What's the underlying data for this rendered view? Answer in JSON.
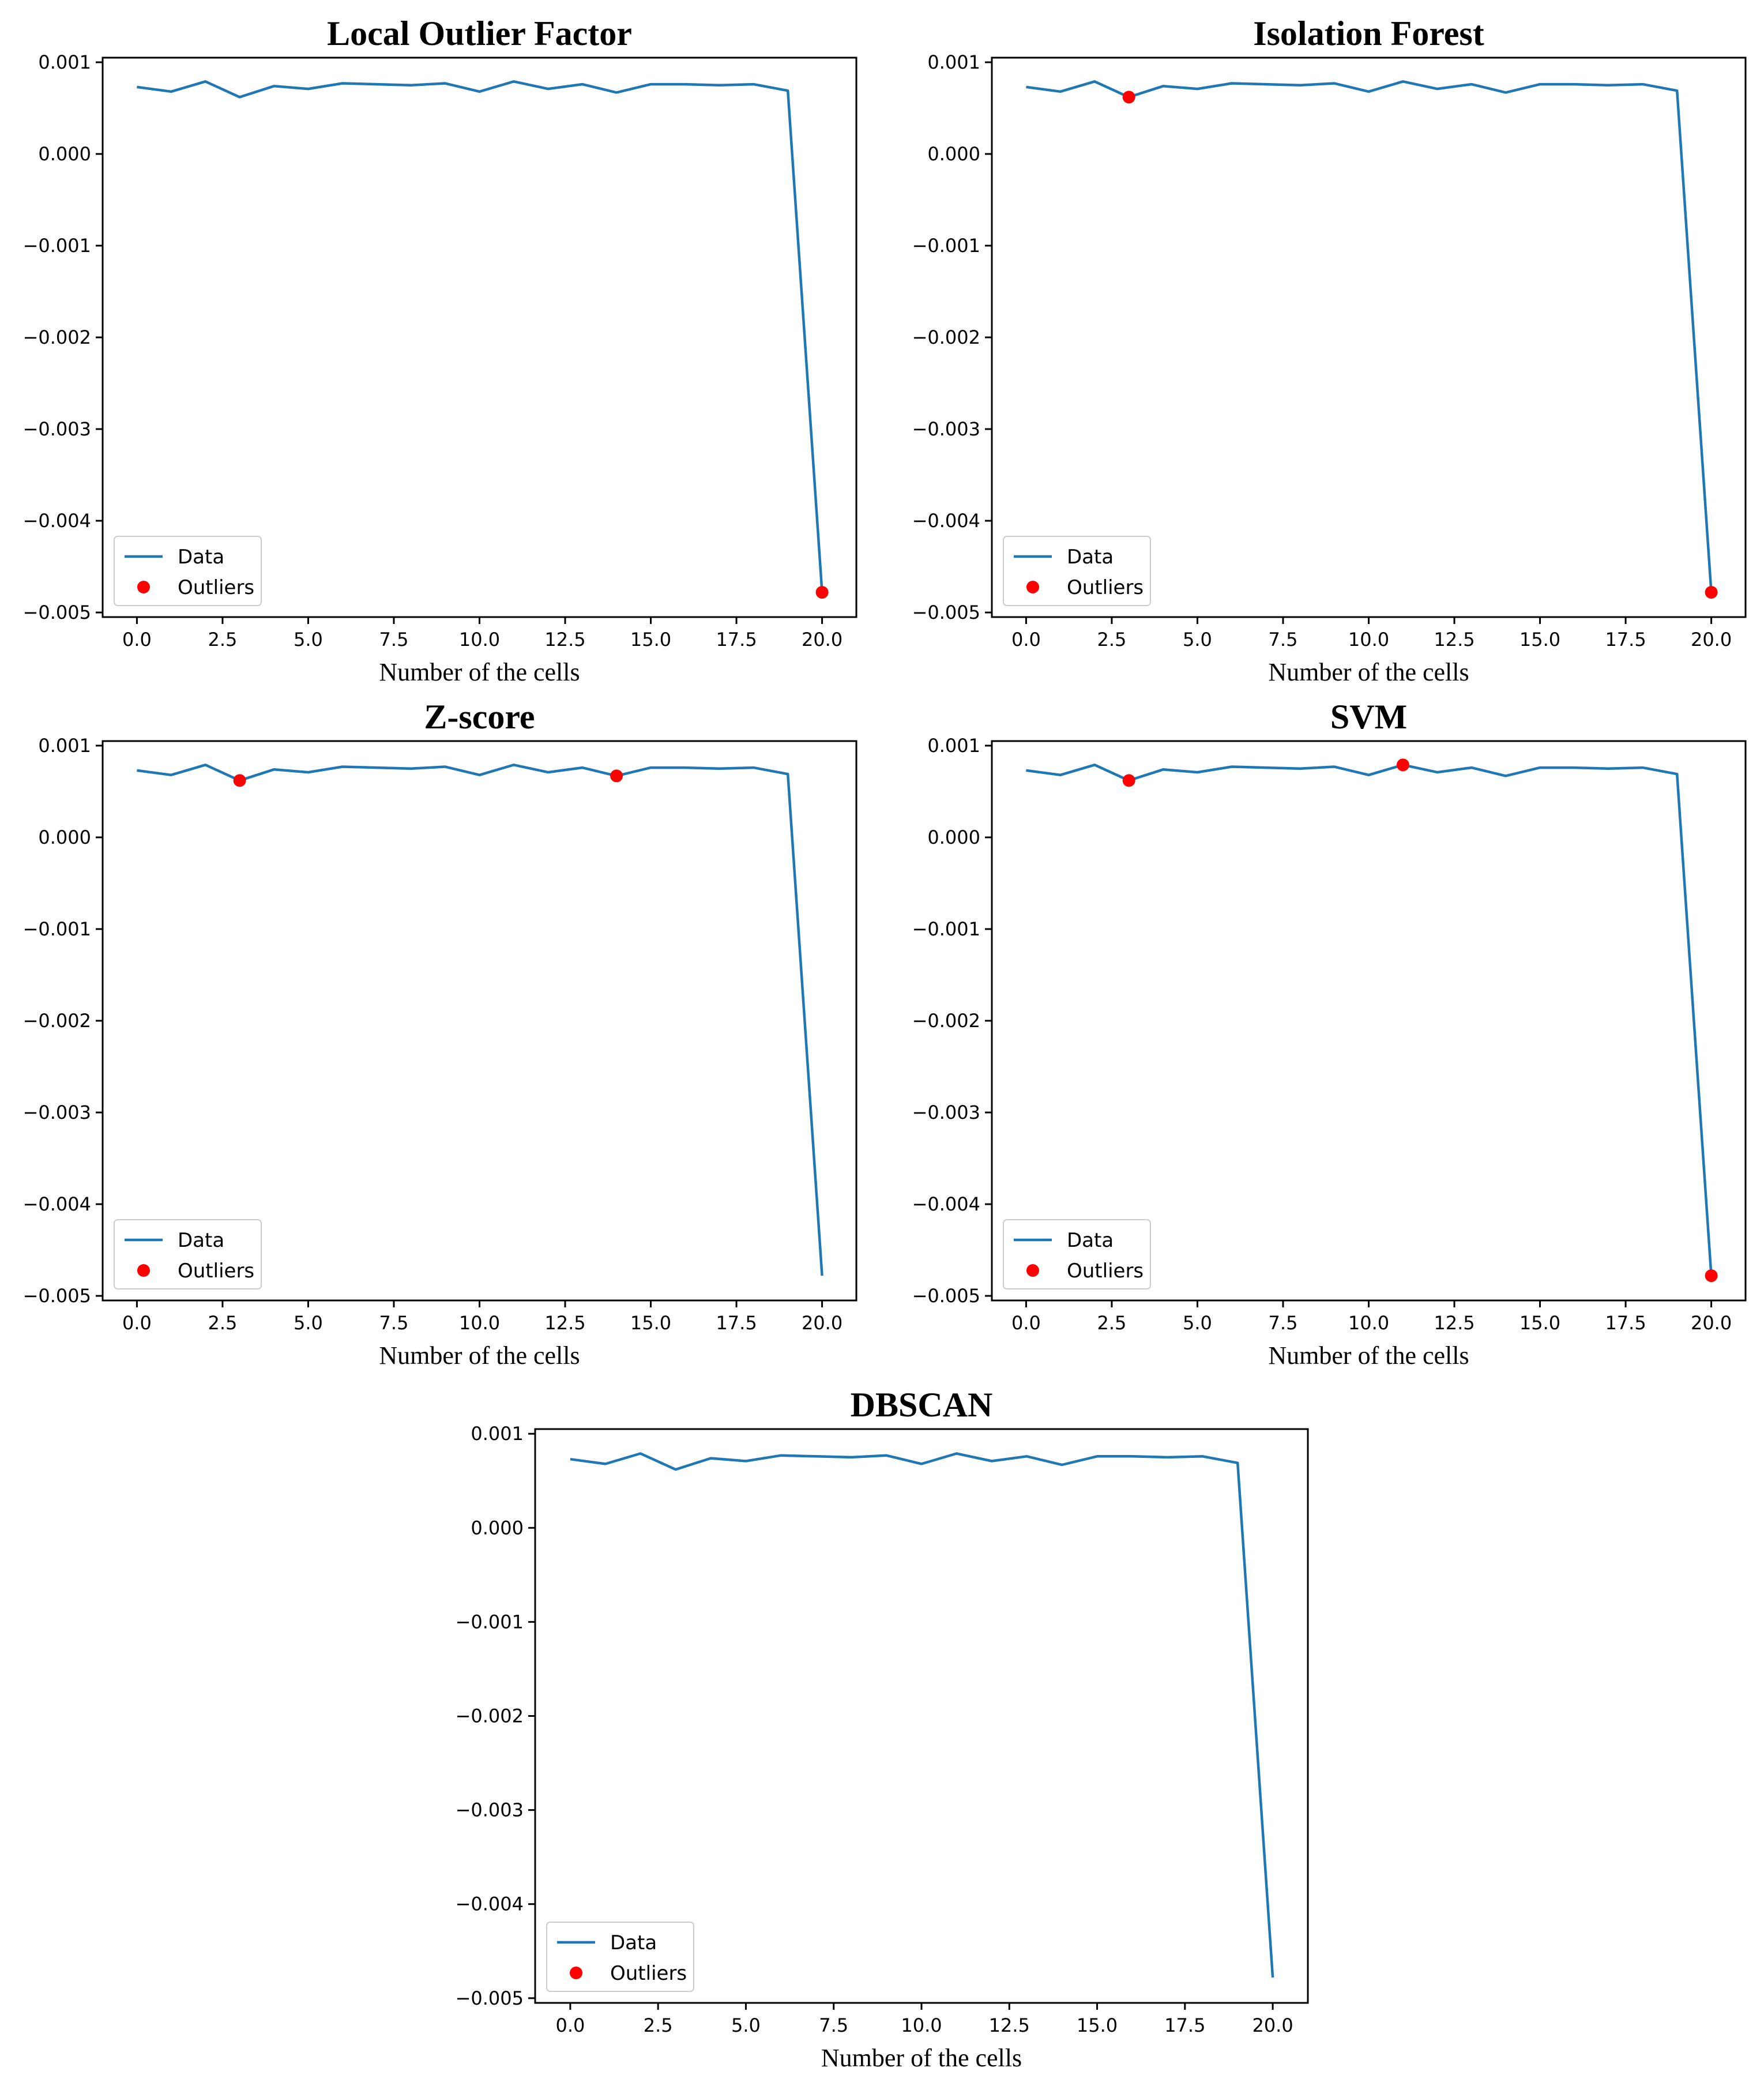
{
  "colors": {
    "data_line": "#1f77b4",
    "outlier": "#ff0000"
  },
  "legend_labels": {
    "data": "Data",
    "outliers": "Outliers"
  },
  "chart_data": [
    {
      "type": "line",
      "title": "Local Outlier Factor",
      "xlabel": "Number of the cells",
      "ylabel": "",
      "xlim": [
        -1,
        21
      ],
      "ylim": [
        -0.00505,
        0.00105
      ],
      "xticks": [
        0.0,
        2.5,
        5.0,
        7.5,
        10.0,
        12.5,
        15.0,
        17.5,
        20.0
      ],
      "xtick_labels": [
        "0.0",
        "2.5",
        "5.0",
        "7.5",
        "10.0",
        "12.5",
        "15.0",
        "17.5",
        "20.0"
      ],
      "yticks": [
        0.001,
        0.0,
        -0.001,
        -0.002,
        -0.003,
        -0.004,
        -0.005
      ],
      "ytick_labels": [
        "0.001",
        "0.000",
        "−0.001",
        "−0.002",
        "−0.003",
        "−0.004",
        "−0.005"
      ],
      "legend_position": "lower-left",
      "grid": false,
      "series": [
        {
          "name": "Data",
          "x": [
            0,
            1,
            2,
            3,
            4,
            5,
            6,
            7,
            8,
            9,
            10,
            11,
            12,
            13,
            14,
            15,
            16,
            17,
            18,
            19,
            20
          ],
          "y": [
            0.00073,
            0.00068,
            0.00079,
            0.00062,
            0.00074,
            0.00071,
            0.00077,
            0.00076,
            0.00075,
            0.00077,
            0.00068,
            0.00079,
            0.00071,
            0.00076,
            0.00067,
            0.00076,
            0.00076,
            0.00075,
            0.00076,
            0.00069,
            -0.00478
          ]
        }
      ],
      "outliers": {
        "name": "Outliers",
        "x": [
          20
        ],
        "y": [
          -0.00478
        ]
      }
    },
    {
      "type": "line",
      "title": "Isolation Forest",
      "xlabel": "Number of the cells",
      "ylabel": "",
      "xlim": [
        -1,
        21
      ],
      "ylim": [
        -0.00505,
        0.00105
      ],
      "xticks": [
        0.0,
        2.5,
        5.0,
        7.5,
        10.0,
        12.5,
        15.0,
        17.5,
        20.0
      ],
      "xtick_labels": [
        "0.0",
        "2.5",
        "5.0",
        "7.5",
        "10.0",
        "12.5",
        "15.0",
        "17.5",
        "20.0"
      ],
      "yticks": [
        0.001,
        0.0,
        -0.001,
        -0.002,
        -0.003,
        -0.004,
        -0.005
      ],
      "ytick_labels": [
        "0.001",
        "0.000",
        "−0.001",
        "−0.002",
        "−0.003",
        "−0.004",
        "−0.005"
      ],
      "legend_position": "lower-left",
      "grid": false,
      "series": [
        {
          "name": "Data",
          "x": [
            0,
            1,
            2,
            3,
            4,
            5,
            6,
            7,
            8,
            9,
            10,
            11,
            12,
            13,
            14,
            15,
            16,
            17,
            18,
            19,
            20
          ],
          "y": [
            0.00073,
            0.00068,
            0.00079,
            0.00062,
            0.00074,
            0.00071,
            0.00077,
            0.00076,
            0.00075,
            0.00077,
            0.00068,
            0.00079,
            0.00071,
            0.00076,
            0.00067,
            0.00076,
            0.00076,
            0.00075,
            0.00076,
            0.00069,
            -0.00478
          ]
        }
      ],
      "outliers": {
        "name": "Outliers",
        "x": [
          3,
          20
        ],
        "y": [
          0.00062,
          -0.00478
        ]
      }
    },
    {
      "type": "line",
      "title": "Z-score",
      "xlabel": "Number of the cells",
      "ylabel": "",
      "xlim": [
        -1,
        21
      ],
      "ylim": [
        -0.00505,
        0.00105
      ],
      "xticks": [
        0.0,
        2.5,
        5.0,
        7.5,
        10.0,
        12.5,
        15.0,
        17.5,
        20.0
      ],
      "xtick_labels": [
        "0.0",
        "2.5",
        "5.0",
        "7.5",
        "10.0",
        "12.5",
        "15.0",
        "17.5",
        "20.0"
      ],
      "yticks": [
        0.001,
        0.0,
        -0.001,
        -0.002,
        -0.003,
        -0.004,
        -0.005
      ],
      "ytick_labels": [
        "0.001",
        "0.000",
        "−0.001",
        "−0.002",
        "−0.003",
        "−0.004",
        "−0.005"
      ],
      "legend_position": "lower-left",
      "grid": false,
      "series": [
        {
          "name": "Data",
          "x": [
            0,
            1,
            2,
            3,
            4,
            5,
            6,
            7,
            8,
            9,
            10,
            11,
            12,
            13,
            14,
            15,
            16,
            17,
            18,
            19,
            20
          ],
          "y": [
            0.00073,
            0.00068,
            0.00079,
            0.00062,
            0.00074,
            0.00071,
            0.00077,
            0.00076,
            0.00075,
            0.00077,
            0.00068,
            0.00079,
            0.00071,
            0.00076,
            0.00067,
            0.00076,
            0.00076,
            0.00075,
            0.00076,
            0.00069,
            -0.00478
          ]
        }
      ],
      "outliers": {
        "name": "Outliers",
        "x": [
          3,
          14
        ],
        "y": [
          0.00062,
          0.00067
        ]
      }
    },
    {
      "type": "line",
      "title": "SVM",
      "xlabel": "Number of the cells",
      "ylabel": "",
      "xlim": [
        -1,
        21
      ],
      "ylim": [
        -0.00505,
        0.00105
      ],
      "xticks": [
        0.0,
        2.5,
        5.0,
        7.5,
        10.0,
        12.5,
        15.0,
        17.5,
        20.0
      ],
      "xtick_labels": [
        "0.0",
        "2.5",
        "5.0",
        "7.5",
        "10.0",
        "12.5",
        "15.0",
        "17.5",
        "20.0"
      ],
      "yticks": [
        0.001,
        0.0,
        -0.001,
        -0.002,
        -0.003,
        -0.004,
        -0.005
      ],
      "ytick_labels": [
        "0.001",
        "0.000",
        "−0.001",
        "−0.002",
        "−0.003",
        "−0.004",
        "−0.005"
      ],
      "legend_position": "lower-left",
      "grid": false,
      "series": [
        {
          "name": "Data",
          "x": [
            0,
            1,
            2,
            3,
            4,
            5,
            6,
            7,
            8,
            9,
            10,
            11,
            12,
            13,
            14,
            15,
            16,
            17,
            18,
            19,
            20
          ],
          "y": [
            0.00073,
            0.00068,
            0.00079,
            0.00062,
            0.00074,
            0.00071,
            0.00077,
            0.00076,
            0.00075,
            0.00077,
            0.00068,
            0.00079,
            0.00071,
            0.00076,
            0.00067,
            0.00076,
            0.00076,
            0.00075,
            0.00076,
            0.00069,
            -0.00478
          ]
        }
      ],
      "outliers": {
        "name": "Outliers",
        "x": [
          3,
          11,
          20
        ],
        "y": [
          0.00062,
          0.00079,
          -0.00478
        ]
      }
    },
    {
      "type": "line",
      "title": "DBSCAN",
      "xlabel": "Number of the cells",
      "ylabel": "",
      "xlim": [
        -1,
        21
      ],
      "ylim": [
        -0.00505,
        0.00105
      ],
      "xticks": [
        0.0,
        2.5,
        5.0,
        7.5,
        10.0,
        12.5,
        15.0,
        17.5,
        20.0
      ],
      "xtick_labels": [
        "0.0",
        "2.5",
        "5.0",
        "7.5",
        "10.0",
        "12.5",
        "15.0",
        "17.5",
        "20.0"
      ],
      "yticks": [
        0.001,
        0.0,
        -0.001,
        -0.002,
        -0.003,
        -0.004,
        -0.005
      ],
      "ytick_labels": [
        "0.001",
        "0.000",
        "−0.001",
        "−0.002",
        "−0.003",
        "−0.004",
        "−0.005"
      ],
      "legend_position": "lower-left",
      "grid": false,
      "series": [
        {
          "name": "Data",
          "x": [
            0,
            1,
            2,
            3,
            4,
            5,
            6,
            7,
            8,
            9,
            10,
            11,
            12,
            13,
            14,
            15,
            16,
            17,
            18,
            19,
            20
          ],
          "y": [
            0.00073,
            0.00068,
            0.00079,
            0.00062,
            0.00074,
            0.00071,
            0.00077,
            0.00076,
            0.00075,
            0.00077,
            0.00068,
            0.00079,
            0.00071,
            0.00076,
            0.00067,
            0.00076,
            0.00076,
            0.00075,
            0.00076,
            0.00069,
            -0.00478
          ]
        }
      ],
      "outliers": {
        "name": "Outliers",
        "x": [],
        "y": []
      }
    }
  ]
}
